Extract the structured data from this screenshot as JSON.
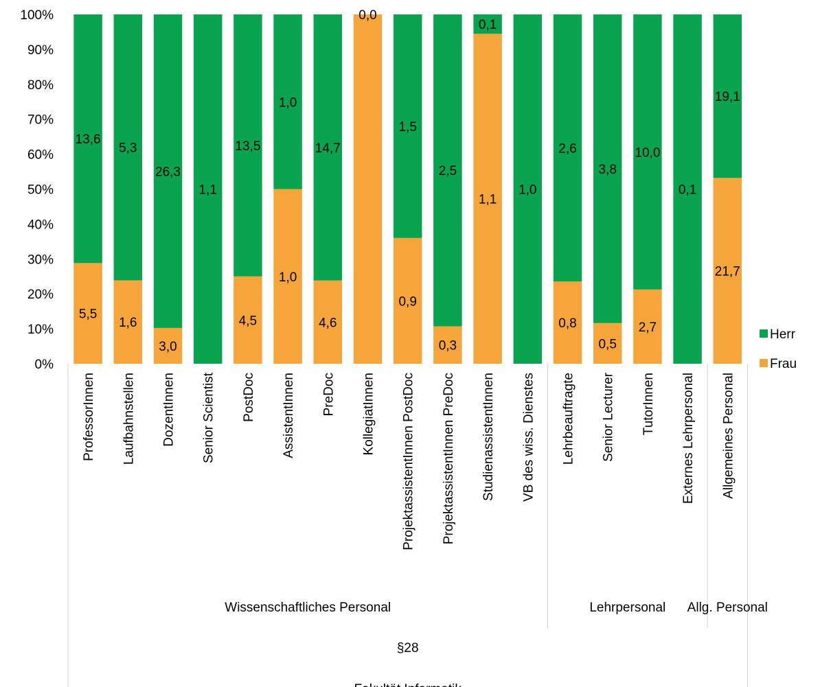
{
  "chart_data": {
    "type": "bar",
    "stacked": true,
    "normalized": true,
    "categories": [
      "ProfessorInnen",
      "Laufbahnstellen",
      "DozentInnen",
      "Senior Scientist",
      "PostDoc",
      "AssistentInnen",
      "PreDoc",
      "KollegiatInnen",
      "ProjektassistentInnen PostDoc",
      "ProjektassistentInnen PreDoc",
      "StudienassistentInnen",
      "VB des wiss. Dienstes",
      "Lehrbeauftragte",
      "Senior Lecturer",
      "TutorInnen",
      "Externes Lehrpersonal",
      "Allgemeines Personal"
    ],
    "series": [
      {
        "name": "Frau",
        "color": "#f6a53a",
        "values": [
          5.5,
          1.6,
          3.0,
          0,
          4.5,
          1.0,
          4.6,
          0.0,
          0.9,
          0.3,
          1.1,
          0,
          0.8,
          0.5,
          2.7,
          0,
          21.7
        ],
        "labels": [
          "5,5",
          "1,6",
          "3,0",
          "",
          "4,5",
          "1,0",
          "4,6",
          "",
          "0,9",
          "0,3",
          "1,1",
          "",
          "0,8",
          "0,5",
          "2,7",
          "",
          "21,7"
        ]
      },
      {
        "name": "Herr",
        "color": "#0aa34f",
        "values": [
          13.6,
          5.3,
          26.3,
          1.1,
          13.5,
          1.0,
          14.7,
          0,
          1.5,
          2.5,
          0.1,
          1.0,
          2.6,
          3.8,
          10.0,
          0.1,
          19.1
        ],
        "labels": [
          "13,6",
          "5,3",
          "26,3",
          "1,1",
          "13,5",
          "1,0",
          "14,7",
          "0,0",
          "1,5",
          "2,5",
          "0,1",
          "1,0",
          "2,6",
          "3,8",
          "10,0",
          "0,1",
          "19,1"
        ]
      }
    ],
    "frau_share": [
      0.2881,
      0.2388,
      0.1024,
      0,
      0.25,
      0.5,
      0.2383,
      1,
      0.36,
      0.1071,
      0.9444,
      0,
      0.2353,
      0.1163,
      0.2126,
      0,
      0.5319
    ],
    "y_ticks": [
      "0%",
      "10%",
      "20%",
      "30%",
      "40%",
      "50%",
      "60%",
      "70%",
      "80%",
      "90%",
      "100%"
    ],
    "ylim": [
      0,
      1
    ],
    "group_levels": [
      [
        {
          "label": "Wissenschaftliches Personal",
          "span": [
            0,
            11
          ]
        },
        {
          "label": "Lehrpersonal",
          "span": [
            12,
            15
          ]
        },
        {
          "label": "Allg. Personal",
          "span": [
            16,
            16
          ]
        }
      ],
      [
        {
          "label": "§28",
          "span": [
            0,
            16
          ]
        }
      ],
      [
        {
          "label": "Fakultät Informatik",
          "span": [
            0,
            16
          ]
        }
      ]
    ],
    "legend": {
      "position": "right",
      "entries": [
        "Herr",
        "Frau"
      ]
    }
  }
}
